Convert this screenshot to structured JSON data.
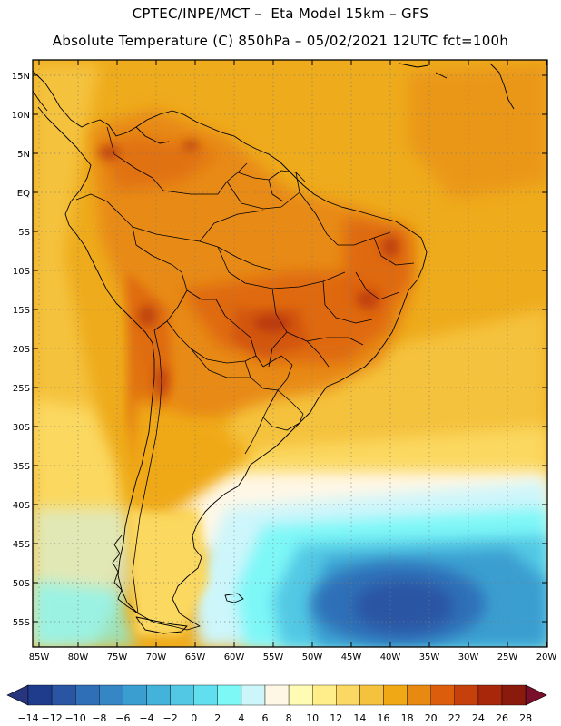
{
  "header": {
    "line1": "CPTEC/INPE/MCT –  Eta Model 15km – GFS",
    "line2": "Absolute Temperature (C) 850hPa – 05/02/2021 12UTC fct=100h"
  },
  "axes": {
    "lat_labels": [
      "15N",
      "10N",
      "5N",
      "EQ",
      "5S",
      "10S",
      "15S",
      "20S",
      "25S",
      "30S",
      "35S",
      "40S",
      "45S",
      "50S",
      "55S"
    ],
    "lon_labels": [
      "85W",
      "80W",
      "75W",
      "70W",
      "65W",
      "60W",
      "55W",
      "50W",
      "45W",
      "40W",
      "35W",
      "30W",
      "25W",
      "20W"
    ]
  },
  "colorbar": {
    "labels": [
      "-14",
      "-12",
      "-10",
      "-8",
      "-6",
      "-4",
      "-2",
      "0",
      "2",
      "4",
      "6",
      "8",
      "10",
      "12",
      "14",
      "16",
      "18",
      "20",
      "22",
      "24",
      "26",
      "28"
    ],
    "colors": [
      "#1f3c8c",
      "#2a55a3",
      "#2f6fb8",
      "#3686c6",
      "#3b9ed0",
      "#44b3db",
      "#52c8e4",
      "#62dfee",
      "#7ef7f7",
      "#cdf6fb",
      "#fff7e6",
      "#fffbb5",
      "#ffee8a",
      "#fbd861",
      "#f5c23e",
      "#f0a914",
      "#e88a12",
      "#dc5e0c",
      "#c5400b",
      "#a8270a",
      "#8a1a0c"
    ],
    "under_color": "#27357f",
    "over_color": "#7a0f2c"
  }
}
